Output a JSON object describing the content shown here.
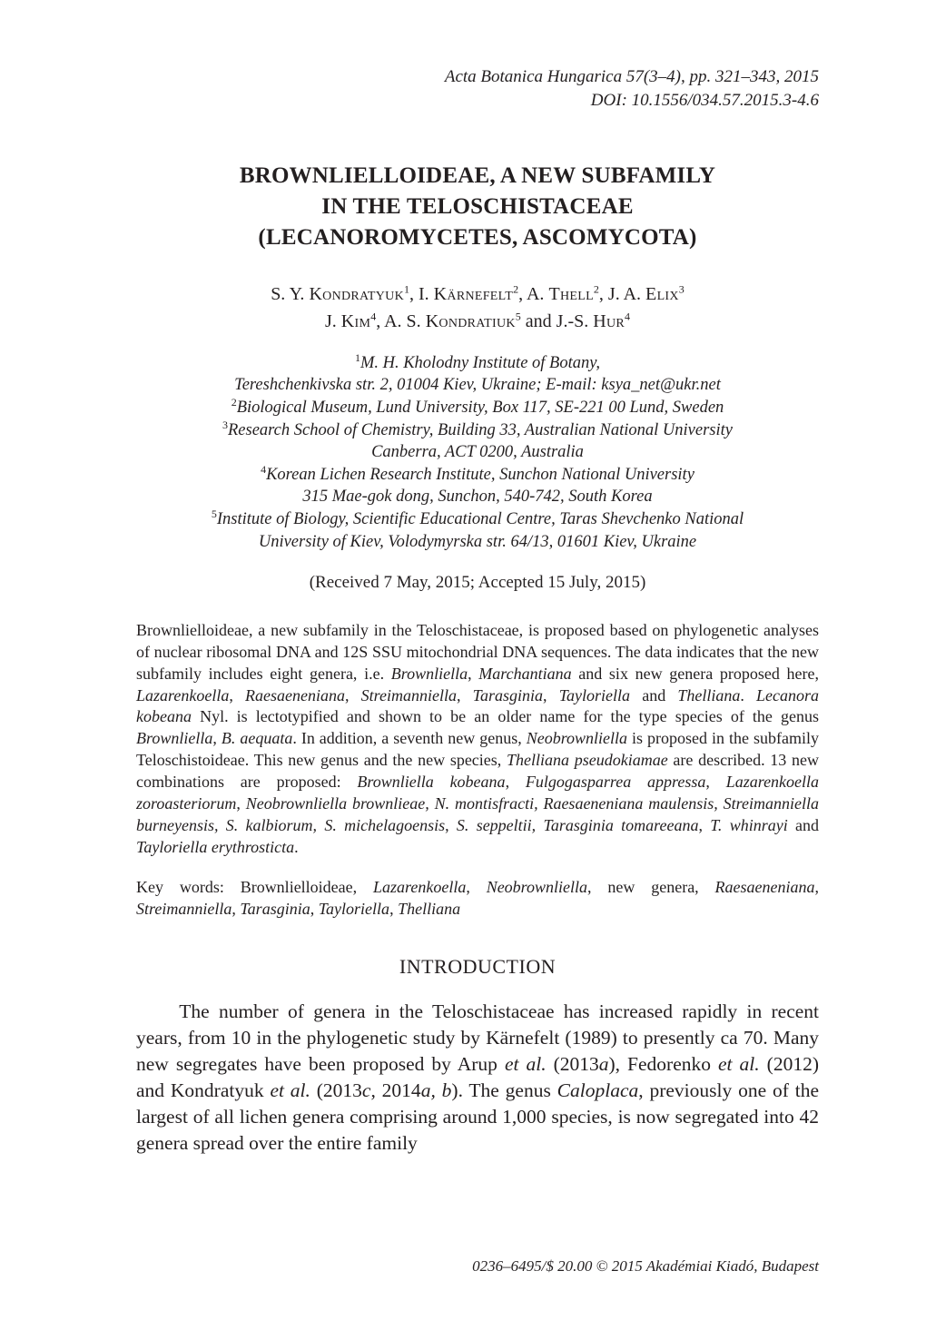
{
  "colors": {
    "text": "#231f20",
    "background": "#ffffff"
  },
  "typography": {
    "body_font_family": "Book Antiqua / Palatino",
    "title_fontsize_pt": 12.5,
    "author_fontsize_pt": 10,
    "affil_fontsize_pt": 9.2,
    "abstract_fontsize_pt": 9,
    "body_fontsize_pt": 10.7,
    "footer_fontsize_pt": 8.5
  },
  "running_head": {
    "line1": "Acta Botanica Hungarica 57(3–4), pp. 321–343, 2015",
    "line2": "DOI: 10.1556/034.57.2015.3-4.6"
  },
  "title": {
    "line1": "BROWNLIELLOIDEAE, A NEW SUBFAMILY",
    "line2": "IN THE TELOSCHISTACEAE",
    "line3": "(LECANOROMYCETES, ASCOMYCOTA)"
  },
  "authors_html": "S. Y. <span class=\"sc\">Kondratyuk</span><sup>1</sup>, I. <span class=\"sc\">Kärnefelt</span><sup>2</sup>, A. <span class=\"sc\">Thell</span><sup>2</sup>, J. A. <span class=\"sc\">Elix</span><sup>3</sup><br>J. <span class=\"sc\">Kim</span><sup>4</sup>, A. S. <span class=\"sc\">Kondratiuk</span><sup>5</sup> and J.-S. <span class=\"sc\">Hur</span><sup>4</sup>",
  "affiliations_html": "<sup>1</sup>M. H. Kholodny Institute of Botany,<br>Tereshchenkivska str. 2, 01004 Kiev, Ukraine; E-mail: ksya_net@ukr.net<br><sup>2</sup>Biological Museum, Lund University, Box 117, SE-221 00 Lund, Sweden<br><sup>3</sup>Research School of Chemistry, Building 33, Australian National University<br>Canberra, ACT 0200, Australia<br><sup>4</sup>Korean Lichen Research Institute, Sunchon National University<br>315 Mae-gok dong, Sunchon, 540-742, South Korea<br><sup>5</sup>Institute of Biology, Scientific Educational Centre, Taras Shevchenko National<br>University of Kiev, Volodymyrska str. 64/13, 01601 Kiev, Ukraine",
  "received": "(Received 7 May, 2015; Accepted 15 July, 2015)",
  "abstract_html": "Brownlielloideae, a new subfamily in the Teloschistaceae, is proposed based on phylogenetic analyses of nuclear ribosomal DNA and 12S SSU mitochondrial DNA sequences. The data indicates that the new subfamily includes eight genera, i.e. <em>Brownliella</em>, <em>Marchantiana</em> and six new genera proposed here, <em>Lazarenkoella</em>, <em>Raesaeneniana</em>, <em>Streimanniella</em>, <em>Tarasginia</em>, <em>Tayloriella</em> and <em>Thelliana</em>. <em>Lecanora kobeana</em> Nyl. is lectotypified and shown to be an older name for the type species of the genus <em>Brownliella</em>, <em>B. aequata</em>. In addition, a seventh new genus, <em>Neobrownliella</em> is proposed in the subfamily Teloschistoideae. This new genus and the new species, <em>Thelliana pseudokiamae</em> are described. 13 new combinations are proposed: <em>Brownliella kobeana</em>, <em>Fulgogasparrea appressa</em>, <em>Lazarenkoella zoroasteriorum</em>, <em>Neobrownliella brownlieae, N. montisfracti, Raesaeneniana maulensis, Streimanniella burneyensis, S. kalbiorum, S. michelagoensis</em>, <em>S. seppeltii, Tarasginia tomareeana</em>, <em>T. whinrayi</em> and <em>Tayloriella erythrosticta</em>.",
  "keywords_html": "Key words: Brownlielloideae, <em>Lazarenkoella</em>, <em>Neobrownliella</em>, new genera, <em>Raesaeneniana</em>, <em>Streimanniella</em>, <em>Tarasginia</em>, <em>Tayloriella</em>, <em>Thelliana</em>",
  "section_heading": "INTRODUCTION",
  "body_html": "<p>The number of genera in the Teloschistaceae has increased rapidly in recent years, from 10 in the phylogenetic study by Kärnefelt (1989) to presently ca 70. Many new segregates have been proposed by Arup <em>et al.</em> (2013<em>a</em>), Fedorenko <em>et al.</em> (2012) and Kondratyuk <em>et al.</em> (2013<em>c</em>, 2014<em>a, b</em>). The genus <em>Caloplaca</em>, previously one of the largest of all lichen genera comprising around 1,000 species, is now segregated into 42 genera spread over the entire family</p>",
  "footer": "0236–6495/$ 20.00 © 2015 Akadémiai Kiadó, Budapest"
}
